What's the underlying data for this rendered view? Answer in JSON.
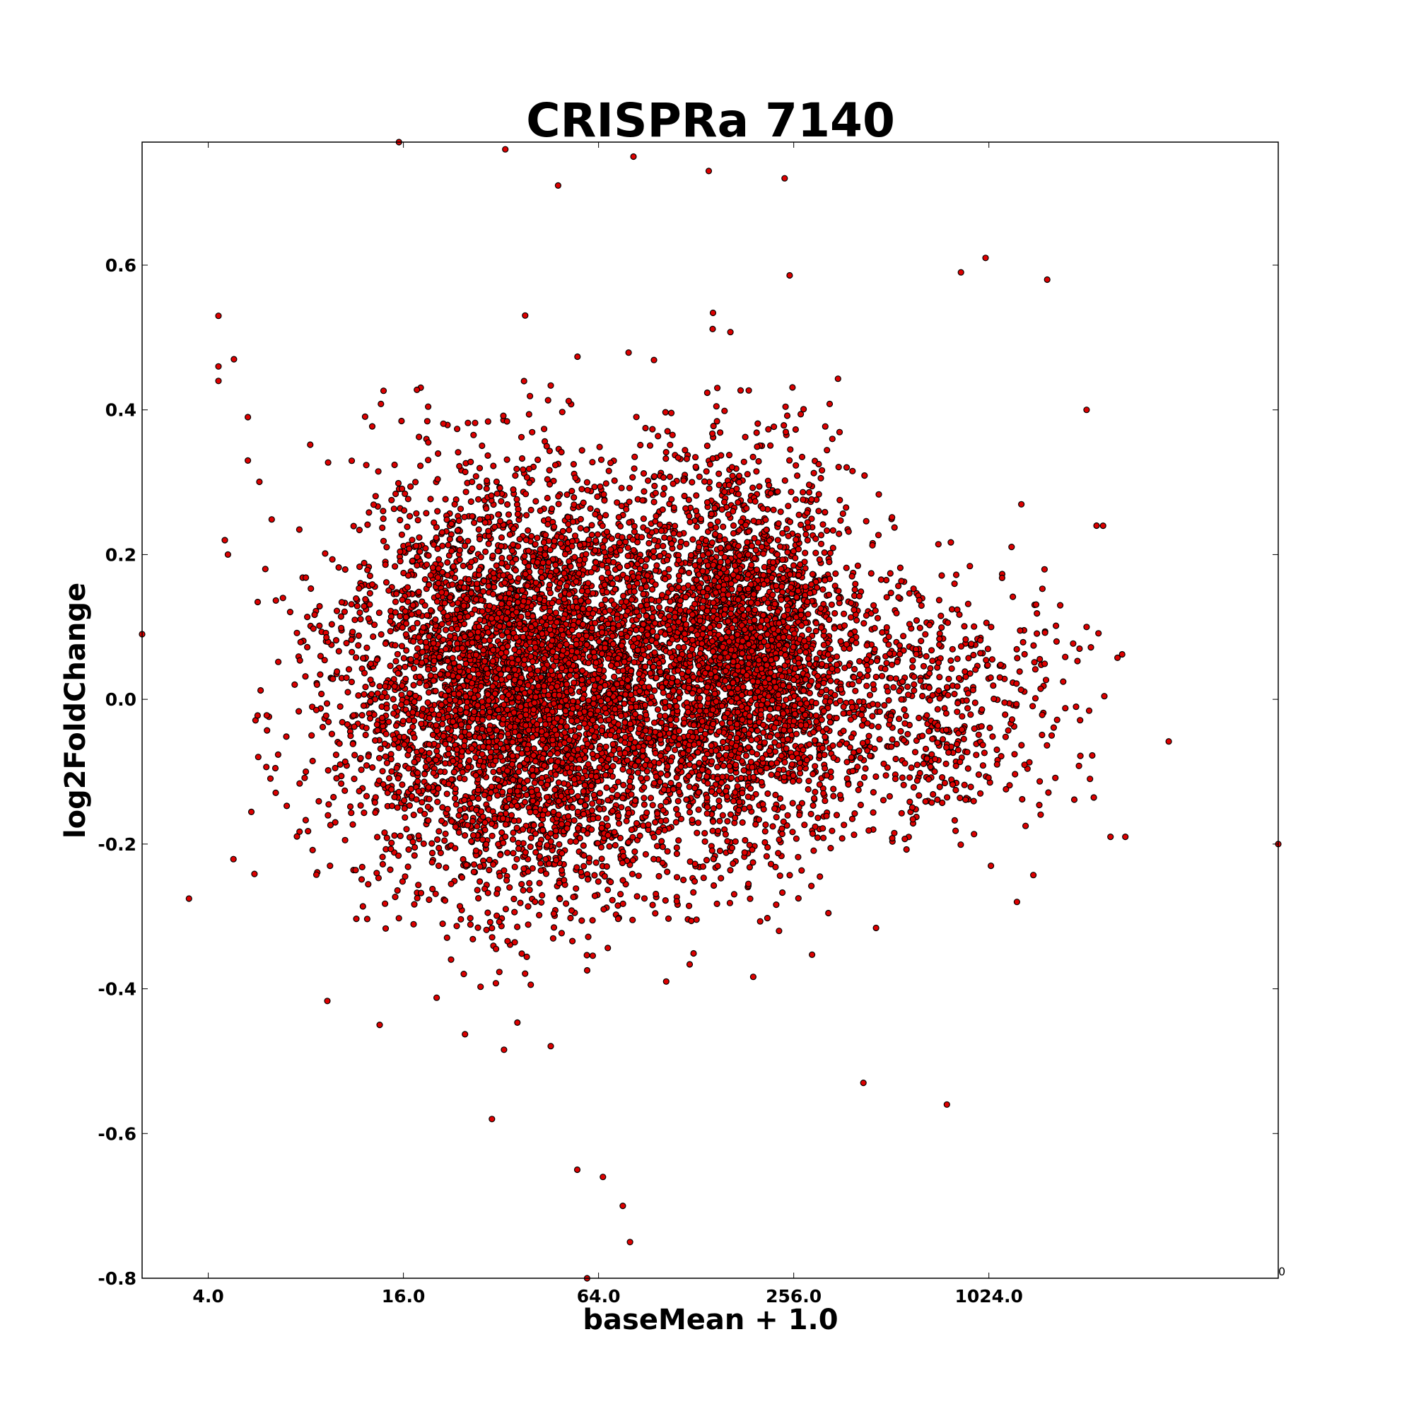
{
  "chart_data": {
    "type": "scatter",
    "title": "CRISPRa 7140",
    "xlabel": "baseMean + 1.0",
    "ylabel": "log2FoldChange",
    "x_scale": "log2",
    "xlim": [
      2.5,
      8000
    ],
    "ylim": [
      -0.8,
      0.77
    ],
    "x_ticks": [
      {
        "value": 4,
        "label": "4.0"
      },
      {
        "value": 16,
        "label": "16.0"
      },
      {
        "value": 64,
        "label": "64.0"
      },
      {
        "value": 256,
        "label": "256.0"
      },
      {
        "value": 1024,
        "label": "1024.0"
      }
    ],
    "y_ticks": [
      {
        "value": 0.6,
        "label": "0.6"
      },
      {
        "value": 0.4,
        "label": "0.4"
      },
      {
        "value": 0.2,
        "label": "0.2"
      },
      {
        "value": 0.0,
        "label": "0.0"
      },
      {
        "value": -0.2,
        "label": "-0.2"
      },
      {
        "value": -0.4,
        "label": "-0.4"
      },
      {
        "value": -0.6,
        "label": "-0.6"
      },
      {
        "value": -0.8,
        "label": "-0.8"
      }
    ],
    "corner_label": "0",
    "grid": false,
    "legend": "none",
    "marker_color": "#dd0000",
    "marker_edge": "#000000",
    "highlighted_points": [
      {
        "x": 4.3,
        "y": 0.53
      },
      {
        "x": 4.3,
        "y": 0.46
      },
      {
        "x": 4.3,
        "y": 0.44
      },
      {
        "x": 4.8,
        "y": 0.47
      },
      {
        "x": 4.5,
        "y": 0.22
      },
      {
        "x": 4.6,
        "y": 0.2
      },
      {
        "x": 5.3,
        "y": 0.39
      },
      {
        "x": 5.3,
        "y": 0.33
      },
      {
        "x": 6.0,
        "y": 0.18
      },
      {
        "x": 6.8,
        "y": 0.14
      },
      {
        "x": 8.0,
        "y": -0.1
      },
      {
        "x": 9.5,
        "y": -0.23
      },
      {
        "x": 15.5,
        "y": 0.77
      },
      {
        "x": 33,
        "y": 0.76
      },
      {
        "x": 48,
        "y": 0.71
      },
      {
        "x": 82,
        "y": 0.75
      },
      {
        "x": 140,
        "y": 0.73
      },
      {
        "x": 240,
        "y": 0.72
      },
      {
        "x": 76,
        "y": -0.7
      },
      {
        "x": 80,
        "y": -0.75
      },
      {
        "x": 59,
        "y": -0.8
      },
      {
        "x": 55,
        "y": -0.65
      },
      {
        "x": 66,
        "y": -0.66
      },
      {
        "x": 30,
        "y": -0.58
      },
      {
        "x": 840,
        "y": 0.59
      },
      {
        "x": 1000,
        "y": 0.61
      },
      {
        "x": 1550,
        "y": 0.58
      },
      {
        "x": 2050,
        "y": 0.4
      },
      {
        "x": 2200,
        "y": 0.24
      },
      {
        "x": 2700,
        "y": -0.19
      },
      {
        "x": 2100,
        "y": -0.11
      },
      {
        "x": 1250,
        "y": -0.28
      },
      {
        "x": 760,
        "y": -0.56
      },
      {
        "x": 420,
        "y": -0.53
      },
      {
        "x": 2.5,
        "y": 0.09
      },
      {
        "x": 8000,
        "y": -0.2
      },
      {
        "x": 2050,
        "y": 0.1
      },
      {
        "x": 1950,
        "y": 0.07
      },
      {
        "x": 1700,
        "y": 0.13
      },
      {
        "x": 1600,
        "y": -0.05
      }
    ]
  }
}
